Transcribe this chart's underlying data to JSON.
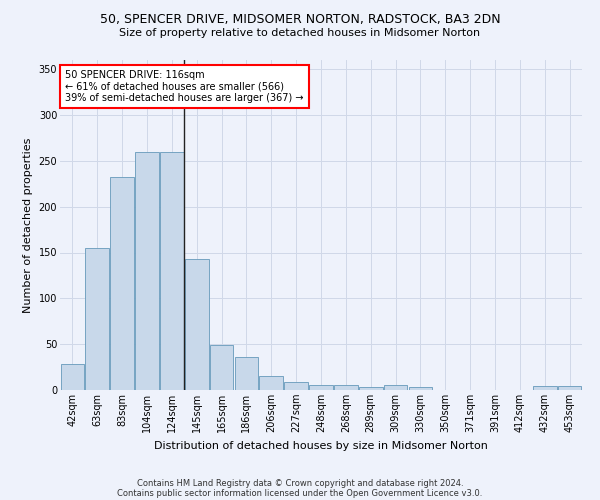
{
  "title": "50, SPENCER DRIVE, MIDSOMER NORTON, RADSTOCK, BA3 2DN",
  "subtitle": "Size of property relative to detached houses in Midsomer Norton",
  "xlabel": "Distribution of detached houses by size in Midsomer Norton",
  "ylabel": "Number of detached properties",
  "footer_line1": "Contains HM Land Registry data © Crown copyright and database right 2024.",
  "footer_line2": "Contains public sector information licensed under the Open Government Licence v3.0.",
  "annotation_line1": "50 SPENCER DRIVE: 116sqm",
  "annotation_line2": "← 61% of detached houses are smaller (566)",
  "annotation_line3": "39% of semi-detached houses are larger (367) →",
  "bar_color": "#c8d8ea",
  "bar_edge_color": "#6699bb",
  "categories": [
    "42sqm",
    "63sqm",
    "83sqm",
    "104sqm",
    "124sqm",
    "145sqm",
    "165sqm",
    "186sqm",
    "206sqm",
    "227sqm",
    "248sqm",
    "268sqm",
    "289sqm",
    "309sqm",
    "330sqm",
    "350sqm",
    "371sqm",
    "391sqm",
    "412sqm",
    "432sqm",
    "453sqm"
  ],
  "values": [
    28,
    155,
    232,
    260,
    260,
    143,
    49,
    36,
    15,
    9,
    6,
    5,
    3,
    5,
    3,
    0,
    0,
    0,
    0,
    4,
    4
  ],
  "ylim": [
    0,
    360
  ],
  "yticks": [
    0,
    50,
    100,
    150,
    200,
    250,
    300,
    350
  ],
  "vline_x": 4.5,
  "bg_color": "#eef2fb",
  "grid_color": "#d0d8e8",
  "title_fontsize": 9,
  "subtitle_fontsize": 8,
  "ylabel_fontsize": 8,
  "xlabel_fontsize": 8,
  "tick_fontsize": 7,
  "footer_fontsize": 6,
  "annot_fontsize": 7
}
